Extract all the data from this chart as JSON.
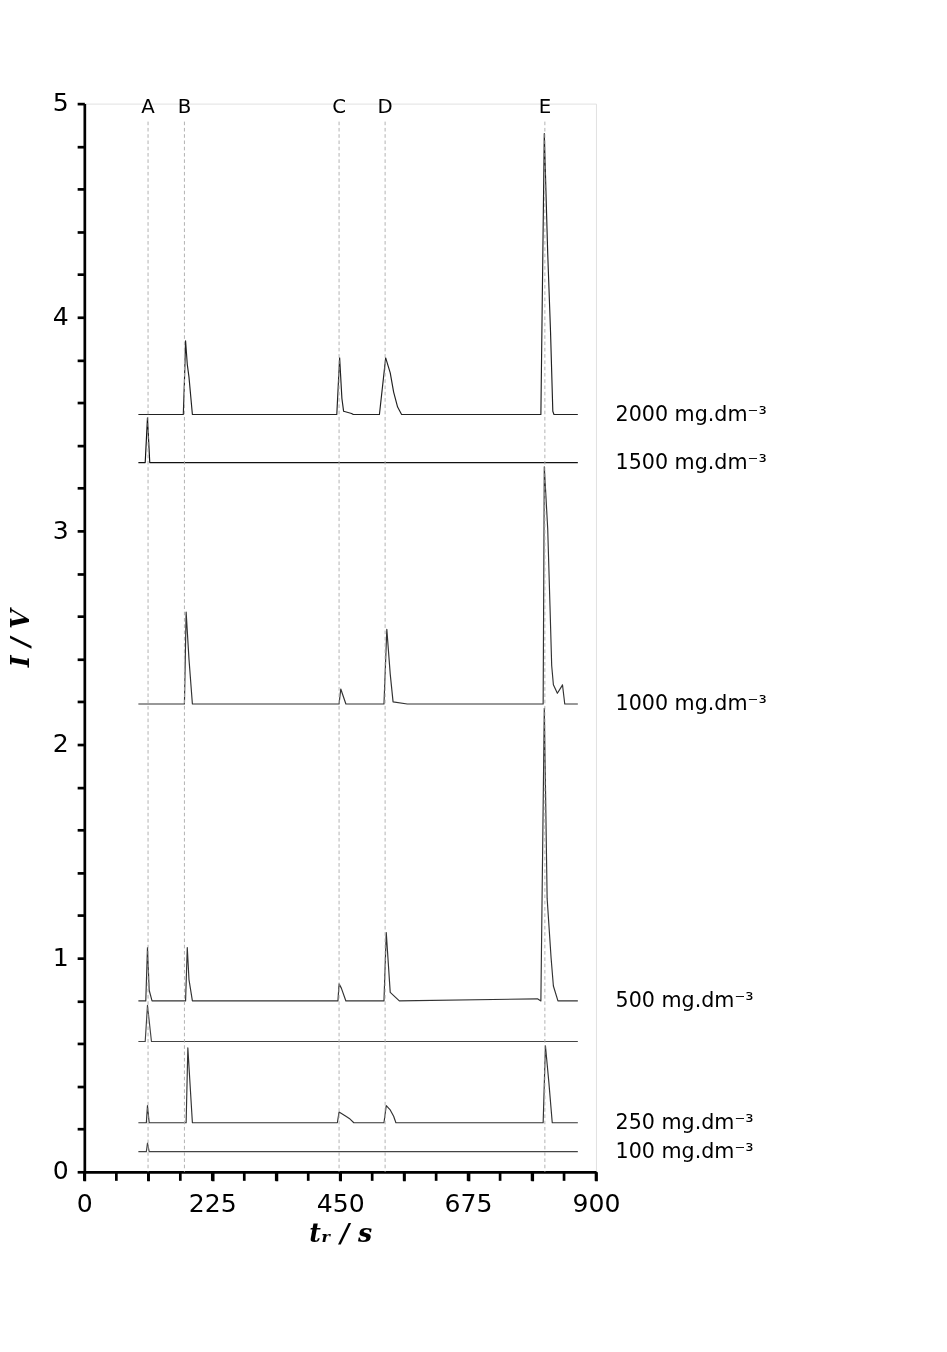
{
  "chart_data": {
    "type": "line",
    "xlabel": "tᵣ / s",
    "ylabel": "I / V",
    "xlim": [
      0,
      900
    ],
    "ylim": [
      0,
      5
    ],
    "xticks": [
      0,
      {
        "value": 56.25,
        "label": null
      },
      {
        "value": 112.5,
        "label": null
      },
      {
        "value": 168.75,
        "label": null
      },
      225,
      {
        "value": 281.25,
        "label": null
      },
      {
        "value": 337.5,
        "label": null
      },
      {
        "value": 393.75,
        "label": null
      },
      450,
      {
        "value": 506.25,
        "label": null
      },
      {
        "value": 562.5,
        "label": null
      },
      {
        "value": 618.75,
        "label": null
      },
      675,
      {
        "value": 731.25,
        "label": null
      },
      {
        "value": 787.5,
        "label": null
      },
      {
        "value": 843.75,
        "label": null
      },
      900
    ],
    "yticks": [
      0,
      {
        "value": 0.2,
        "label": null
      },
      {
        "value": 0.4,
        "label": null
      },
      {
        "value": 0.6,
        "label": null
      },
      {
        "value": 0.8,
        "label": null
      },
      1,
      {
        "value": 1.2,
        "label": null
      },
      {
        "value": 1.4,
        "label": null
      },
      {
        "value": 1.6,
        "label": null
      },
      {
        "value": 1.8,
        "label": null
      },
      2,
      {
        "value": 2.2,
        "label": null
      },
      {
        "value": 2.4,
        "label": null
      },
      {
        "value": 2.6,
        "label": null
      },
      {
        "value": 2.8,
        "label": null
      },
      3,
      {
        "value": 3.2,
        "label": null
      },
      {
        "value": 3.4,
        "label": null
      },
      {
        "value": 3.6,
        "label": null
      },
      {
        "value": 3.8,
        "label": null
      },
      4,
      {
        "value": 4.2,
        "label": null
      },
      {
        "value": 4.4,
        "label": null
      },
      {
        "value": 4.6,
        "label": null
      },
      {
        "value": 4.8,
        "label": null
      },
      5
    ],
    "grid": false,
    "line_style": "solid",
    "marker": "none",
    "ref_lines": [
      {
        "axis": "x",
        "value": 112,
        "label": "A",
        "color": "#aaaaaa",
        "line_style": "dashed"
      },
      {
        "axis": "x",
        "value": 176,
        "label": "B",
        "color": "#aaaaaa",
        "line_style": "dashed"
      },
      {
        "axis": "x",
        "value": 448,
        "label": "C",
        "color": "#aaaaaa",
        "line_style": "dashed"
      },
      {
        "axis": "x",
        "value": 529,
        "label": "D",
        "color": "#aaaaaa",
        "line_style": "dashed"
      },
      {
        "axis": "x",
        "value": 810,
        "label": "E",
        "color": "#aaaaaa",
        "line_style": "dashed"
      }
    ],
    "series": [
      {
        "name": "2000 mg.dm⁻³",
        "color": "#222222",
        "x": [
          95,
          174,
          176,
          178,
          181,
          184,
          190,
          444,
          449,
          453,
          456,
          470,
          473,
          519,
          530,
          538,
          544,
          551,
          558,
          803,
          809,
          815,
          820,
          824,
          826,
          868
        ],
        "values": [
          3.545,
          3.545,
          3.7,
          3.89,
          3.78,
          3.72,
          3.545,
          3.545,
          3.81,
          3.62,
          3.56,
          3.55,
          3.545,
          3.545,
          3.81,
          3.74,
          3.65,
          3.58,
          3.545,
          3.545,
          4.86,
          4.3,
          3.93,
          3.56,
          3.545,
          3.545
        ]
      },
      {
        "name": "1500 mg.dm⁻³",
        "color": "#111111",
        "x": [
          95,
          107,
          111,
          115,
          868
        ],
        "values": [
          3.32,
          3.32,
          3.53,
          3.32,
          3.32
        ]
      },
      {
        "name": "1000 mg.dm⁻³",
        "color": "#333333",
        "x": [
          95,
          176,
          179,
          184,
          190,
          448,
          451,
          460,
          527,
          532,
          538,
          543,
          568,
          807,
          809,
          815,
          819,
          822,
          825,
          832,
          839,
          841,
          845,
          868
        ],
        "values": [
          2.19,
          2.19,
          2.62,
          2.4,
          2.19,
          2.19,
          2.26,
          2.19,
          2.19,
          2.54,
          2.33,
          2.2,
          2.19,
          2.19,
          3.3,
          3.01,
          2.65,
          2.37,
          2.28,
          2.24,
          2.27,
          2.28,
          2.19,
          2.19
        ]
      },
      {
        "name": "500 mg.dm⁻³",
        "color": "#333333",
        "x": [
          95,
          108,
          111,
          114,
          119,
          178,
          181,
          184,
          190,
          446,
          448,
          452,
          460,
          527,
          531,
          538,
          554,
          797,
          803,
          809,
          814,
          821,
          825,
          833,
          868
        ],
        "values": [
          0.8,
          0.8,
          1.05,
          0.85,
          0.8,
          0.8,
          1.05,
          0.9,
          0.8,
          0.8,
          0.88,
          0.86,
          0.8,
          0.8,
          1.12,
          0.84,
          0.8,
          0.81,
          0.8,
          2.17,
          1.28,
          1.0,
          0.87,
          0.8,
          0.8
        ]
      },
      {
        "color": "#444444",
        "x": [
          95,
          107,
          111,
          118,
          868
        ],
        "values": [
          0.61,
          0.61,
          0.78,
          0.61,
          0.61
        ]
      },
      {
        "name": "250 mg.dm⁻³",
        "color": "#333333",
        "x": [
          95,
          109,
          111,
          114,
          179,
          182,
          190,
          445,
          448,
          460,
          466,
          474,
          527,
          531,
          538,
          544,
          548,
          807,
          811,
          817,
          823,
          868
        ],
        "values": [
          0.23,
          0.23,
          0.31,
          0.23,
          0.23,
          0.58,
          0.23,
          0.23,
          0.28,
          0.26,
          0.25,
          0.23,
          0.23,
          0.31,
          0.29,
          0.26,
          0.23,
          0.23,
          0.59,
          0.42,
          0.23,
          0.23
        ]
      },
      {
        "name": "100 mg.dm⁻³",
        "color": "#444444",
        "x": [
          95,
          109,
          111,
          114,
          868
        ],
        "values": [
          0.095,
          0.095,
          0.135,
          0.095,
          0.095
        ]
      }
    ]
  }
}
